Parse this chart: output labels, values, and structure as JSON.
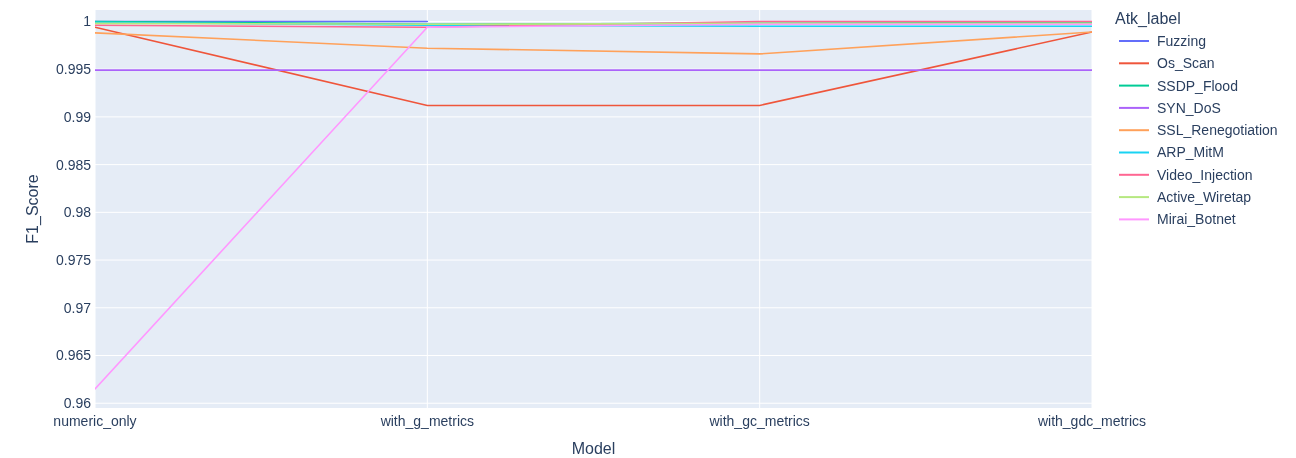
{
  "chart_data": {
    "type": "line",
    "xlabel": "Model",
    "ylabel": "F1_Score",
    "legend_title": "Atk_label",
    "categories": [
      "numeric_only",
      "with_g_metrics",
      "with_gc_metrics",
      "with_gdc_metrics"
    ],
    "ylim": [
      0.9595,
      1.0012
    ],
    "yticks": [
      0.96,
      0.965,
      0.97,
      0.975,
      0.98,
      0.985,
      0.99,
      0.995,
      1
    ],
    "grid": true,
    "legend": "top right",
    "marker": "none",
    "line_style": "solid",
    "series": [
      {
        "name": "Fuzzing",
        "color": "#636efa",
        "values": [
          1,
          1,
          null,
          null
        ]
      },
      {
        "name": "Os_Scan",
        "color": "#ef553b",
        "values": [
          0.9994,
          0.9912,
          0.9912,
          0.9989
        ]
      },
      {
        "name": "SSDP_Flood",
        "color": "#00cc96",
        "values": [
          1,
          0.9997,
          0.9998,
          0.9999
        ]
      },
      {
        "name": "SYN_DoS",
        "color": "#ab63fa",
        "values": [
          0.9949,
          0.9949,
          0.9949,
          0.9949
        ]
      },
      {
        "name": "SSL_Renegotiation",
        "color": "#ffa15a",
        "values": [
          0.9988,
          0.9972,
          0.9966,
          0.9989
        ]
      },
      {
        "name": "ARP_MitM",
        "color": "#19d3f3",
        "values": [
          0.9999,
          0.9996,
          0.9995,
          0.9995
        ]
      },
      {
        "name": "Video_Injection",
        "color": "#ff6692",
        "values": [
          0.9996,
          0.9994,
          1,
          1
        ]
      },
      {
        "name": "Active_Wiretap",
        "color": "#b6e880",
        "values": [
          0.9998,
          0.9997,
          0.9998,
          0.9998
        ]
      },
      {
        "name": "Mirai_Botnet",
        "color": "#ff97ff",
        "values": [
          0.9615,
          0.9994,
          0.9997,
          0.9997
        ]
      }
    ]
  }
}
